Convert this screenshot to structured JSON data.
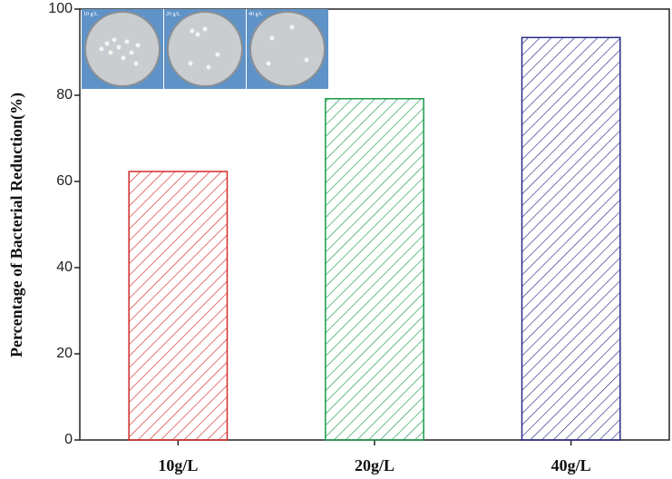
{
  "chart_data": {
    "type": "bar",
    "y_label": "Percentage of Bacterial Reduction(%)",
    "categories": [
      "10g/L",
      "20g/L",
      "40g/L"
    ],
    "values": [
      62.3,
      79.2,
      93.4
    ],
    "colors": [
      "#d42a2a",
      "#1a9a4a",
      "#2a2a86"
    ],
    "ylim": [
      0,
      100
    ],
    "yticks": [
      0,
      20,
      40,
      60,
      80,
      100
    ],
    "inset_labels": [
      "10 g/L",
      "20 g/L",
      "40 g/L"
    ]
  }
}
